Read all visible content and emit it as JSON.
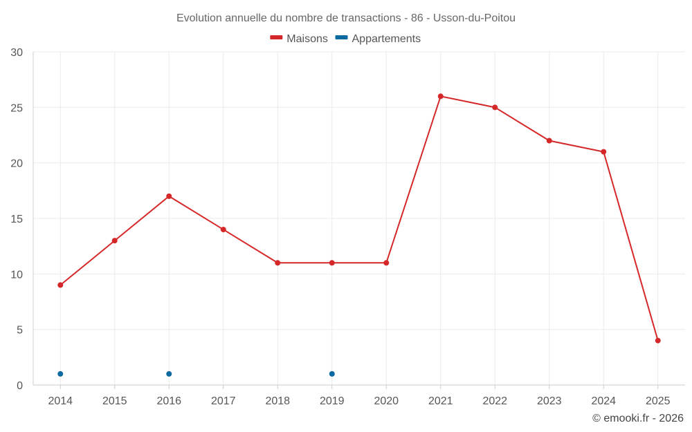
{
  "chart_data": {
    "type": "line",
    "title": "Evolution annuelle du nombre de transactions - 86 - Usson-du-Poitou",
    "xlabel": "",
    "ylabel": "",
    "categories": [
      "2014",
      "2015",
      "2016",
      "2017",
      "2018",
      "2019",
      "2020",
      "2021",
      "2022",
      "2023",
      "2024",
      "2025"
    ],
    "ylim": [
      0,
      30
    ],
    "yticks": [
      0,
      5,
      10,
      15,
      20,
      25,
      30
    ],
    "grid": true,
    "legend_position": "top-center",
    "series": [
      {
        "name": "Maisons",
        "color": "#d62728",
        "values": [
          9,
          13,
          17,
          14,
          11,
          11,
          11,
          26,
          25,
          22,
          21,
          4
        ]
      },
      {
        "name": "Appartements",
        "color": "#0b6aa2",
        "values": [
          1,
          null,
          1,
          null,
          null,
          1,
          null,
          null,
          null,
          null,
          null,
          null
        ]
      }
    ]
  },
  "credit": "© emooki.fr - 2026"
}
